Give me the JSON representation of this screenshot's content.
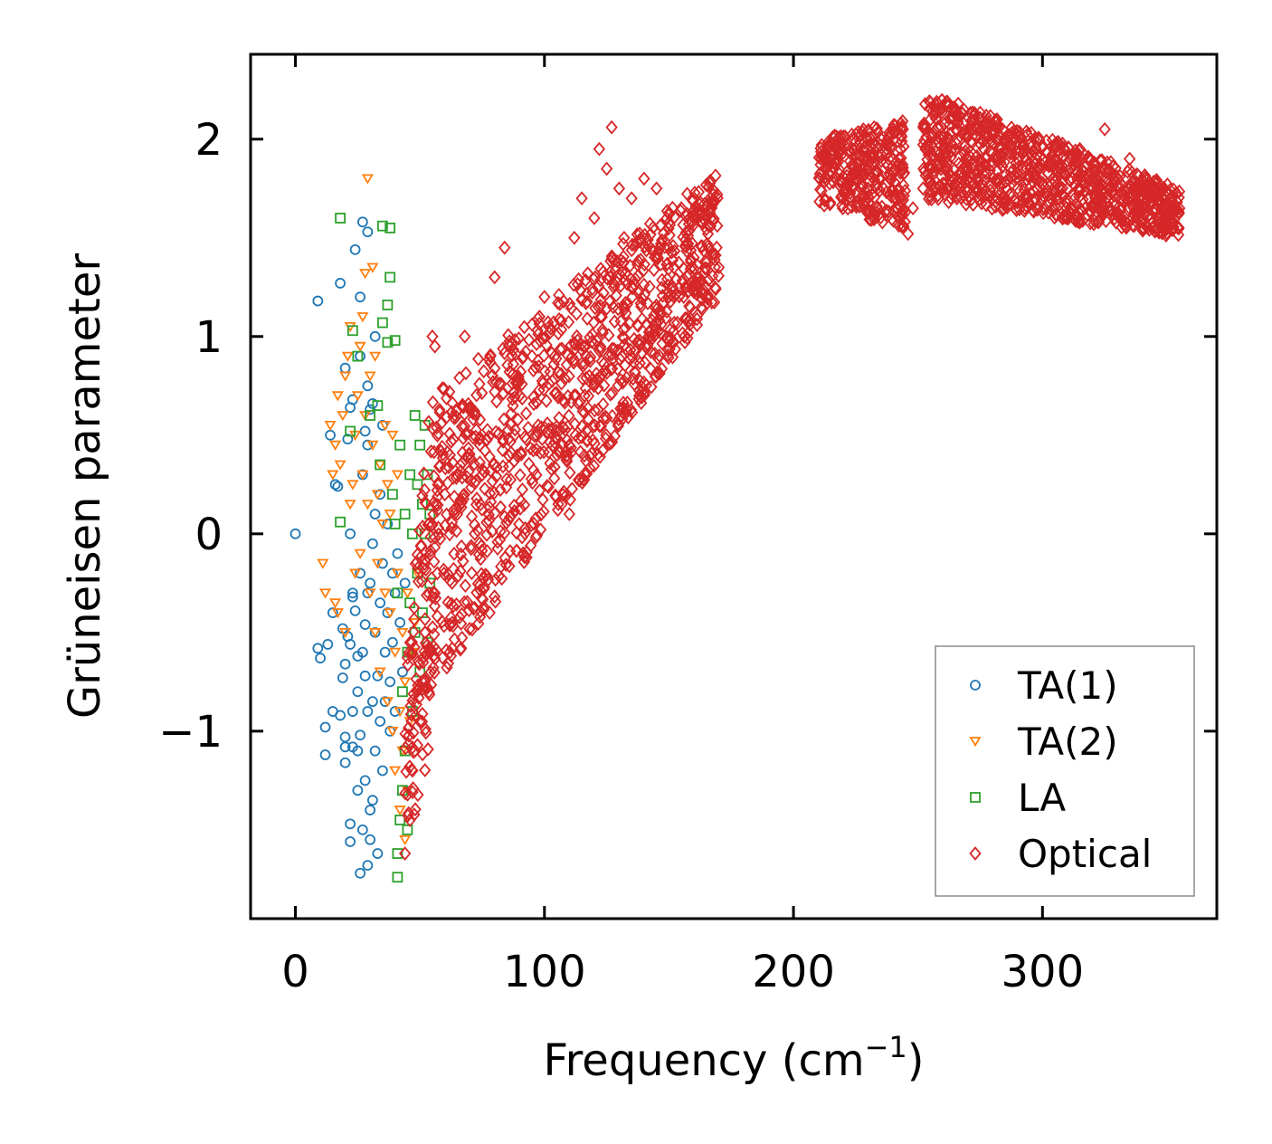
{
  "chart_data": {
    "type": "scatter",
    "title": "",
    "xlabel": "Frequency (cm",
    "xlabel_sup": "−1",
    "xlabel_close": ")",
    "ylabel": "Grüneisen parameter",
    "xlim": [
      -18,
      370
    ],
    "ylim": [
      -1.95,
      2.43
    ],
    "xticks": [
      0,
      100,
      200,
      300
    ],
    "xtick_labels": [
      "0",
      "100",
      "200",
      "300"
    ],
    "yticks": [
      -1,
      0,
      1,
      2
    ],
    "ytick_labels": [
      "−1",
      "0",
      "1",
      "2"
    ],
    "legend_position": "lower-right",
    "series": [
      {
        "name": "TA(1)",
        "marker": "circle",
        "color": "#1f77b4",
        "points": [
          [
            0,
            0
          ],
          [
            9,
            1.18
          ],
          [
            9,
            -0.58
          ],
          [
            10,
            -0.63
          ],
          [
            12,
            -0.98
          ],
          [
            12,
            -1.12
          ],
          [
            13,
            -0.56
          ],
          [
            14,
            0.5
          ],
          [
            15,
            -0.9
          ],
          [
            15,
            -0.4
          ],
          [
            16,
            0.25
          ],
          [
            17,
            0.24
          ],
          [
            18,
            1.27
          ],
          [
            18,
            -0.92
          ],
          [
            19,
            -0.48
          ],
          [
            19,
            -0.73
          ],
          [
            20,
            -0.66
          ],
          [
            20,
            -1.03
          ],
          [
            20,
            -1.08
          ],
          [
            20,
            -1.16
          ],
          [
            20,
            0.84
          ],
          [
            21,
            0.48
          ],
          [
            21,
            -0.52
          ],
          [
            22,
            0.64
          ],
          [
            22,
            -0.56
          ],
          [
            22,
            0.0
          ],
          [
            22,
            -1.47
          ],
          [
            22,
            -1.56
          ],
          [
            23,
            0.68
          ],
          [
            23,
            -0.32
          ],
          [
            23,
            -0.9
          ],
          [
            23,
            -1.08
          ],
          [
            23,
            -0.3
          ],
          [
            24,
            1.44
          ],
          [
            24,
            -0.39
          ],
          [
            25,
            -0.8
          ],
          [
            25,
            -0.62
          ],
          [
            25,
            -1.1
          ],
          [
            25,
            -1.3
          ],
          [
            26,
            1.2
          ],
          [
            26,
            0.9
          ],
          [
            26,
            -1.02
          ],
          [
            26,
            -0.2
          ],
          [
            26,
            -1.72
          ],
          [
            27,
            1.58
          ],
          [
            27,
            0.3
          ],
          [
            27,
            -0.6
          ],
          [
            27,
            -1.5
          ],
          [
            28,
            0.52
          ],
          [
            28,
            -0.46
          ],
          [
            28,
            -0.72
          ],
          [
            28,
            -1.25
          ],
          [
            29,
            1.53
          ],
          [
            29,
            0.75
          ],
          [
            29,
            0.45
          ],
          [
            29,
            -0.3
          ],
          [
            29,
            -0.9
          ],
          [
            29,
            -1.68
          ],
          [
            30,
            0.63
          ],
          [
            30,
            -0.25
          ],
          [
            30,
            -1.4
          ],
          [
            30,
            -1.55
          ],
          [
            31,
            0.66
          ],
          [
            31,
            -0.05
          ],
          [
            31,
            -0.85
          ],
          [
            31,
            -1.35
          ],
          [
            32,
            1.0
          ],
          [
            32,
            0.1
          ],
          [
            32,
            -0.5
          ],
          [
            32,
            -1.1
          ],
          [
            33,
            -0.72
          ],
          [
            33,
            -1.62
          ],
          [
            34,
            0.2
          ],
          [
            34,
            -0.35
          ],
          [
            34,
            -0.95
          ],
          [
            35,
            0.55
          ],
          [
            35,
            -0.15
          ],
          [
            35,
            -1.2
          ],
          [
            36,
            -0.6
          ],
          [
            36,
            -0.85
          ],
          [
            37,
            0.05
          ],
          [
            37,
            -0.4
          ],
          [
            38,
            -1.0
          ],
          [
            38,
            -0.75
          ],
          [
            39,
            -0.2
          ],
          [
            39,
            -0.55
          ],
          [
            40,
            -0.9
          ],
          [
            40,
            -0.3
          ],
          [
            41,
            -0.1
          ],
          [
            42,
            -0.45
          ],
          [
            43,
            -0.7
          ],
          [
            44,
            -0.25
          ]
        ]
      },
      {
        "name": "TA(2)",
        "marker": "triangle-down",
        "color": "#ff7f0e",
        "points": [
          [
            11,
            -0.15
          ],
          [
            12,
            -0.3
          ],
          [
            14,
            0.55
          ],
          [
            15,
            0.3
          ],
          [
            16,
            0.45
          ],
          [
            16,
            -0.35
          ],
          [
            17,
            0.7
          ],
          [
            17,
            -0.4
          ],
          [
            18,
            0.35
          ],
          [
            19,
            0.6
          ],
          [
            20,
            -0.5
          ],
          [
            20,
            0.8
          ],
          [
            21,
            0.9
          ],
          [
            22,
            1.05
          ],
          [
            22,
            0.15
          ],
          [
            23,
            0.25
          ],
          [
            24,
            -0.2
          ],
          [
            24,
            0.5
          ],
          [
            25,
            0.7
          ],
          [
            26,
            0.95
          ],
          [
            26,
            -0.1
          ],
          [
            27,
            1.1
          ],
          [
            27,
            0.3
          ],
          [
            28,
            1.32
          ],
          [
            28,
            0.6
          ],
          [
            29,
            1.8
          ],
          [
            29,
            0.15
          ],
          [
            30,
            -0.3
          ],
          [
            30,
            0.8
          ],
          [
            31,
            1.35
          ],
          [
            31,
            0.45
          ],
          [
            32,
            0.9
          ],
          [
            32,
            -0.5
          ],
          [
            33,
            0.2
          ],
          [
            33,
            -0.15
          ],
          [
            34,
            0.35
          ],
          [
            34,
            -0.7
          ],
          [
            35,
            0.05
          ],
          [
            36,
            0.55
          ],
          [
            36,
            -0.3
          ],
          [
            37,
            -0.85
          ],
          [
            37,
            0.25
          ],
          [
            38,
            -0.4
          ],
          [
            38,
            0.1
          ],
          [
            39,
            -1.0
          ],
          [
            39,
            0.5
          ],
          [
            40,
            -0.6
          ],
          [
            40,
            -1.2
          ],
          [
            41,
            -0.2
          ],
          [
            41,
            0.3
          ],
          [
            42,
            -0.9
          ],
          [
            42,
            -1.4
          ],
          [
            43,
            -0.5
          ],
          [
            43,
            -1.1
          ],
          [
            44,
            -0.75
          ],
          [
            44,
            -1.55
          ],
          [
            45,
            -0.3
          ],
          [
            45,
            -1.3
          ],
          [
            46,
            -0.95
          ],
          [
            47,
            -0.6
          ],
          [
            48,
            -0.45
          ],
          [
            49,
            -0.2
          ]
        ]
      },
      {
        "name": "LA",
        "marker": "square",
        "color": "#2ca02c",
        "points": [
          [
            18,
            1.6
          ],
          [
            18,
            0.06
          ],
          [
            22,
            0.52
          ],
          [
            23,
            1.03
          ],
          [
            25,
            0.9
          ],
          [
            30,
            0.6
          ],
          [
            33,
            0.65
          ],
          [
            34,
            0.35
          ],
          [
            35,
            1.56
          ],
          [
            35,
            1.07
          ],
          [
            37,
            1.16
          ],
          [
            37,
            0.97
          ],
          [
            38,
            1.3
          ],
          [
            38,
            1.55
          ],
          [
            39,
            0.2
          ],
          [
            40,
            0.98
          ],
          [
            40,
            0.05
          ],
          [
            41,
            -1.62
          ],
          [
            41,
            -1.74
          ],
          [
            41,
            -0.3
          ],
          [
            42,
            -1.45
          ],
          [
            42,
            0.45
          ],
          [
            43,
            -1.3
          ],
          [
            43,
            -0.8
          ],
          [
            44,
            -1.1
          ],
          [
            44,
            0.1
          ],
          [
            45,
            -0.6
          ],
          [
            45,
            -1.5
          ],
          [
            46,
            -0.35
          ],
          [
            46,
            0.3
          ],
          [
            47,
            0.0
          ],
          [
            47,
            -0.9
          ],
          [
            48,
            0.6
          ],
          [
            48,
            -0.5
          ],
          [
            49,
            0.25
          ],
          [
            49,
            -0.2
          ],
          [
            50,
            0.45
          ],
          [
            50,
            -0.7
          ],
          [
            51,
            0.15
          ],
          [
            51,
            -0.4
          ],
          [
            52,
            0.55
          ],
          [
            52,
            0.0
          ],
          [
            53,
            0.3
          ],
          [
            53,
            -0.55
          ],
          [
            54,
            0.1
          ],
          [
            54,
            -0.25
          ]
        ]
      },
      {
        "name": "Optical",
        "marker": "diamond",
        "color": "#d62728",
        "cloud_bands": [
          {
            "x_from": 44,
            "x_to": 56,
            "y_low_from": -1.62,
            "y_low_to": -1.0,
            "y_high_from": -0.7,
            "y_high_to": 0.9
          },
          {
            "x_from": 54,
            "x_to": 170,
            "y_low_from": -0.8,
            "y_low_to": 1.2,
            "y_high_from": 0.7,
            "y_high_to": 1.85
          },
          {
            "x_from": 210,
            "x_to": 245,
            "y_low_from": 1.65,
            "y_low_to": 1.55,
            "y_high_from": 2.0,
            "y_high_to": 2.1
          },
          {
            "x_from": 252,
            "x_to": 355,
            "y_low_from": 1.7,
            "y_low_to": 1.5,
            "y_high_from": 2.25,
            "y_high_to": 1.75
          }
        ],
        "points": [
          [
            44,
            -1.62
          ],
          [
            46,
            -1.45
          ],
          [
            47,
            -1.2
          ],
          [
            48,
            -1.1
          ],
          [
            50,
            -0.95
          ],
          [
            52,
            -0.5
          ],
          [
            55,
            1.0
          ],
          [
            56,
            0.95
          ],
          [
            57,
            -0.2
          ],
          [
            60,
            0.2
          ],
          [
            62,
            -0.6
          ],
          [
            65,
            0.1
          ],
          [
            68,
            1.0
          ],
          [
            72,
            0.0
          ],
          [
            75,
            0.3
          ],
          [
            78,
            -0.4
          ],
          [
            80,
            1.3
          ],
          [
            84,
            1.45
          ],
          [
            88,
            0.5
          ],
          [
            90,
            0.7
          ],
          [
            95,
            0.9
          ],
          [
            98,
            1.1
          ],
          [
            100,
            1.2
          ],
          [
            105,
            0.4
          ],
          [
            110,
            0.1
          ],
          [
            112,
            1.5
          ],
          [
            115,
            1.7
          ],
          [
            118,
            0.8
          ],
          [
            120,
            1.6
          ],
          [
            122,
            1.95
          ],
          [
            125,
            1.85
          ],
          [
            127,
            2.06
          ],
          [
            130,
            1.75
          ],
          [
            132,
            1.5
          ],
          [
            135,
            1.7
          ],
          [
            140,
            1.8
          ],
          [
            145,
            1.75
          ],
          [
            150,
            1.45
          ],
          [
            152,
            1.35
          ],
          [
            155,
            1.65
          ],
          [
            160,
            1.4
          ],
          [
            165,
            1.25
          ],
          [
            170,
            1.35
          ],
          [
            212,
            1.92
          ],
          [
            215,
            1.9
          ],
          [
            220,
            1.7
          ],
          [
            225,
            1.92
          ],
          [
            230,
            1.75
          ],
          [
            235,
            1.8
          ],
          [
            240,
            1.9
          ],
          [
            244,
            2.05
          ],
          [
            246,
            1.52
          ],
          [
            248,
            1.65
          ],
          [
            252,
            1.75
          ],
          [
            255,
            2.1
          ],
          [
            258,
            2.18
          ],
          [
            262,
            2.0
          ],
          [
            265,
            1.95
          ],
          [
            270,
            1.9
          ],
          [
            275,
            1.85
          ],
          [
            280,
            1.7
          ],
          [
            285,
            2.0
          ],
          [
            290,
            1.75
          ],
          [
            295,
            1.85
          ],
          [
            300,
            1.7
          ],
          [
            305,
            1.9
          ],
          [
            310,
            1.75
          ],
          [
            315,
            1.95
          ],
          [
            320,
            1.85
          ],
          [
            325,
            2.05
          ],
          [
            330,
            1.8
          ],
          [
            335,
            1.9
          ],
          [
            340,
            1.75
          ],
          [
            345,
            1.65
          ],
          [
            350,
            1.55
          ],
          [
            352,
            1.7
          ],
          [
            355,
            1.65
          ]
        ]
      }
    ]
  }
}
